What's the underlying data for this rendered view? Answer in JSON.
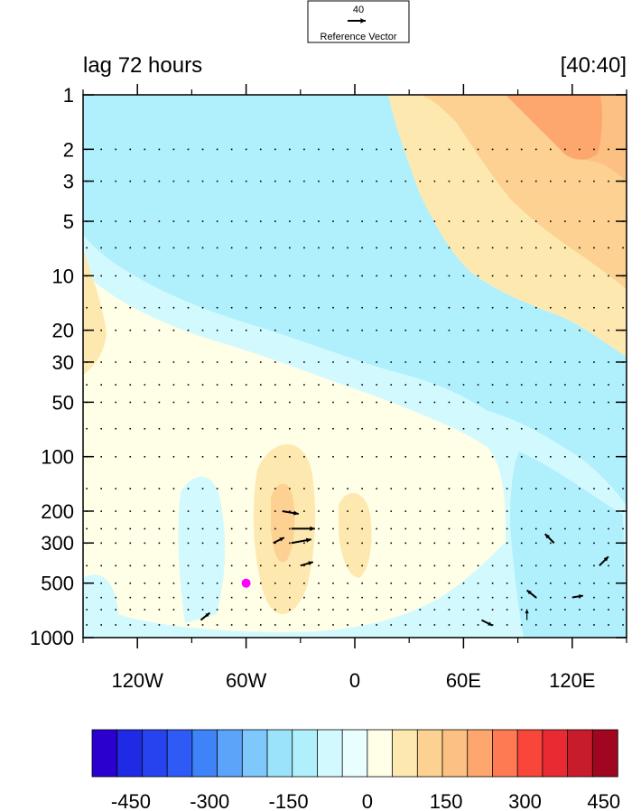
{
  "chart_data": {
    "type": "heatmap",
    "title_left": "lag 72 hours",
    "title_right": "[40:40]",
    "reference_vector": {
      "magnitude_label": "40",
      "label": "Reference Vector"
    },
    "x_axis": {
      "range": [
        -150,
        150
      ],
      "ticks": [
        -120,
        -60,
        0,
        60,
        120
      ],
      "tick_labels": [
        "120W",
        "60W",
        "0",
        "60E",
        "120E"
      ],
      "minor_ticks": [
        -150,
        -90,
        -30,
        30,
        90,
        150
      ]
    },
    "y_axis": {
      "scale": "log",
      "reversed": true,
      "range": [
        1,
        1000
      ],
      "ticks": [
        1,
        2,
        3,
        5,
        10,
        20,
        30,
        50,
        100,
        200,
        300,
        500,
        1000
      ],
      "tick_labels": [
        "1",
        "2",
        "3",
        "5",
        "10",
        "20",
        "30",
        "50",
        "100",
        "200",
        "300",
        "500",
        "1000"
      ]
    },
    "colorbar": {
      "levels": [
        -500,
        -450,
        -400,
        -350,
        -300,
        -250,
        -200,
        -150,
        -100,
        -50,
        0,
        50,
        100,
        150,
        200,
        250,
        300,
        350,
        400,
        450,
        500
      ],
      "colors": [
        "#2b00cf",
        "#1f2ae5",
        "#2742ef",
        "#2e5bf5",
        "#3f83f8",
        "#5ca4f9",
        "#7fc8fb",
        "#9be2fb",
        "#b0effc",
        "#d2fafe",
        "#e9fefe",
        "#fffee6",
        "#fde9b0",
        "#fcd191",
        "#fcc082",
        "#fda66e",
        "#fd7a53",
        "#f8463b",
        "#e82a33",
        "#c81b2c",
        "#a0061f"
      ],
      "labels": [
        "-450",
        "-300",
        "-150",
        "0",
        "150",
        "300",
        "450"
      ],
      "label_values": [
        -450,
        -300,
        -150,
        0,
        150,
        300,
        450
      ]
    },
    "marker": {
      "lon": -60,
      "p": 500,
      "color": "#ff00ff"
    },
    "contour_fill_colors": {
      "neg100": "#b0effc",
      "neg50": "#d2fafe",
      "zero": "#fffee6",
      "pos50": "#fde9b0",
      "pos100": "#fcd191",
      "pos150": "#fcc082",
      "pos200": "#fda66e"
    },
    "notable_vectors": [
      {
        "lon": -40,
        "p": 200,
        "u": 18,
        "v": -3
      },
      {
        "lon": -35,
        "p": 250,
        "u": 26,
        "v": 0
      },
      {
        "lon": -35,
        "p": 300,
        "u": 22,
        "v": 4
      },
      {
        "lon": -45,
        "p": 300,
        "u": 12,
        "v": 6
      },
      {
        "lon": -30,
        "p": 400,
        "u": 14,
        "v": 4
      },
      {
        "lon": -85,
        "p": 800,
        "u": 10,
        "v": 8
      },
      {
        "lon": 110,
        "p": 300,
        "u": -10,
        "v": 10
      },
      {
        "lon": 135,
        "p": 400,
        "u": 10,
        "v": 10
      },
      {
        "lon": 100,
        "p": 600,
        "u": -10,
        "v": 8
      },
      {
        "lon": 120,
        "p": 600,
        "u": 12,
        "v": 2
      },
      {
        "lon": 70,
        "p": 800,
        "u": 12,
        "v": -6
      },
      {
        "lon": 95,
        "p": 800,
        "u": 0,
        "v": 12
      }
    ]
  }
}
